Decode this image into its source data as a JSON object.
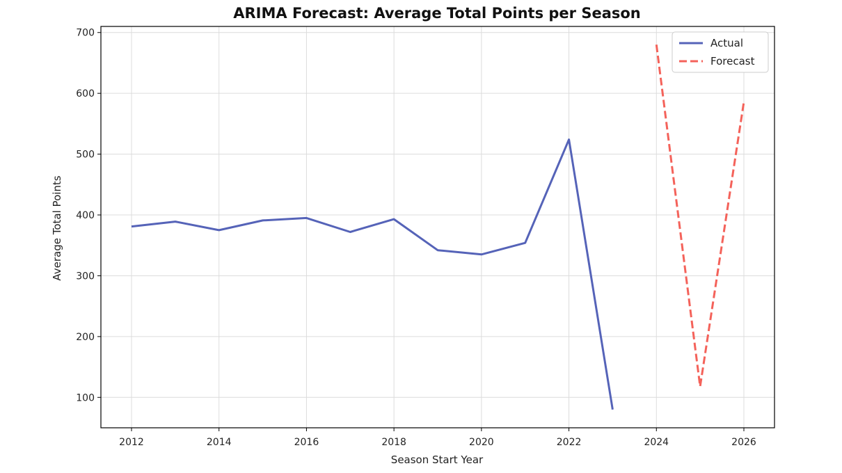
{
  "chart_data": {
    "type": "line",
    "title": "ARIMA Forecast: Average Total Points per Season",
    "xlabel": "Season Start Year",
    "ylabel": "Average Total Points",
    "xlim": [
      2011.3,
      2026.7
    ],
    "ylim": [
      50,
      710
    ],
    "xticks": [
      2012,
      2014,
      2016,
      2018,
      2020,
      2022,
      2024,
      2026
    ],
    "yticks": [
      100,
      200,
      300,
      400,
      500,
      600,
      700
    ],
    "grid": true,
    "legend_position": "top-right",
    "series": [
      {
        "name": "Actual",
        "style": "solid",
        "color": "#5563b8",
        "x": [
          2012,
          2013,
          2014,
          2015,
          2016,
          2017,
          2018,
          2019,
          2020,
          2021,
          2022,
          2023
        ],
        "y": [
          381,
          389,
          375,
          391,
          395,
          372,
          393,
          342,
          335,
          354,
          524,
          80
        ]
      },
      {
        "name": "Forecast",
        "style": "dashed",
        "color": "#f4625a",
        "x": [
          2024,
          2025,
          2026
        ],
        "y": [
          680,
          118,
          586
        ]
      }
    ]
  }
}
